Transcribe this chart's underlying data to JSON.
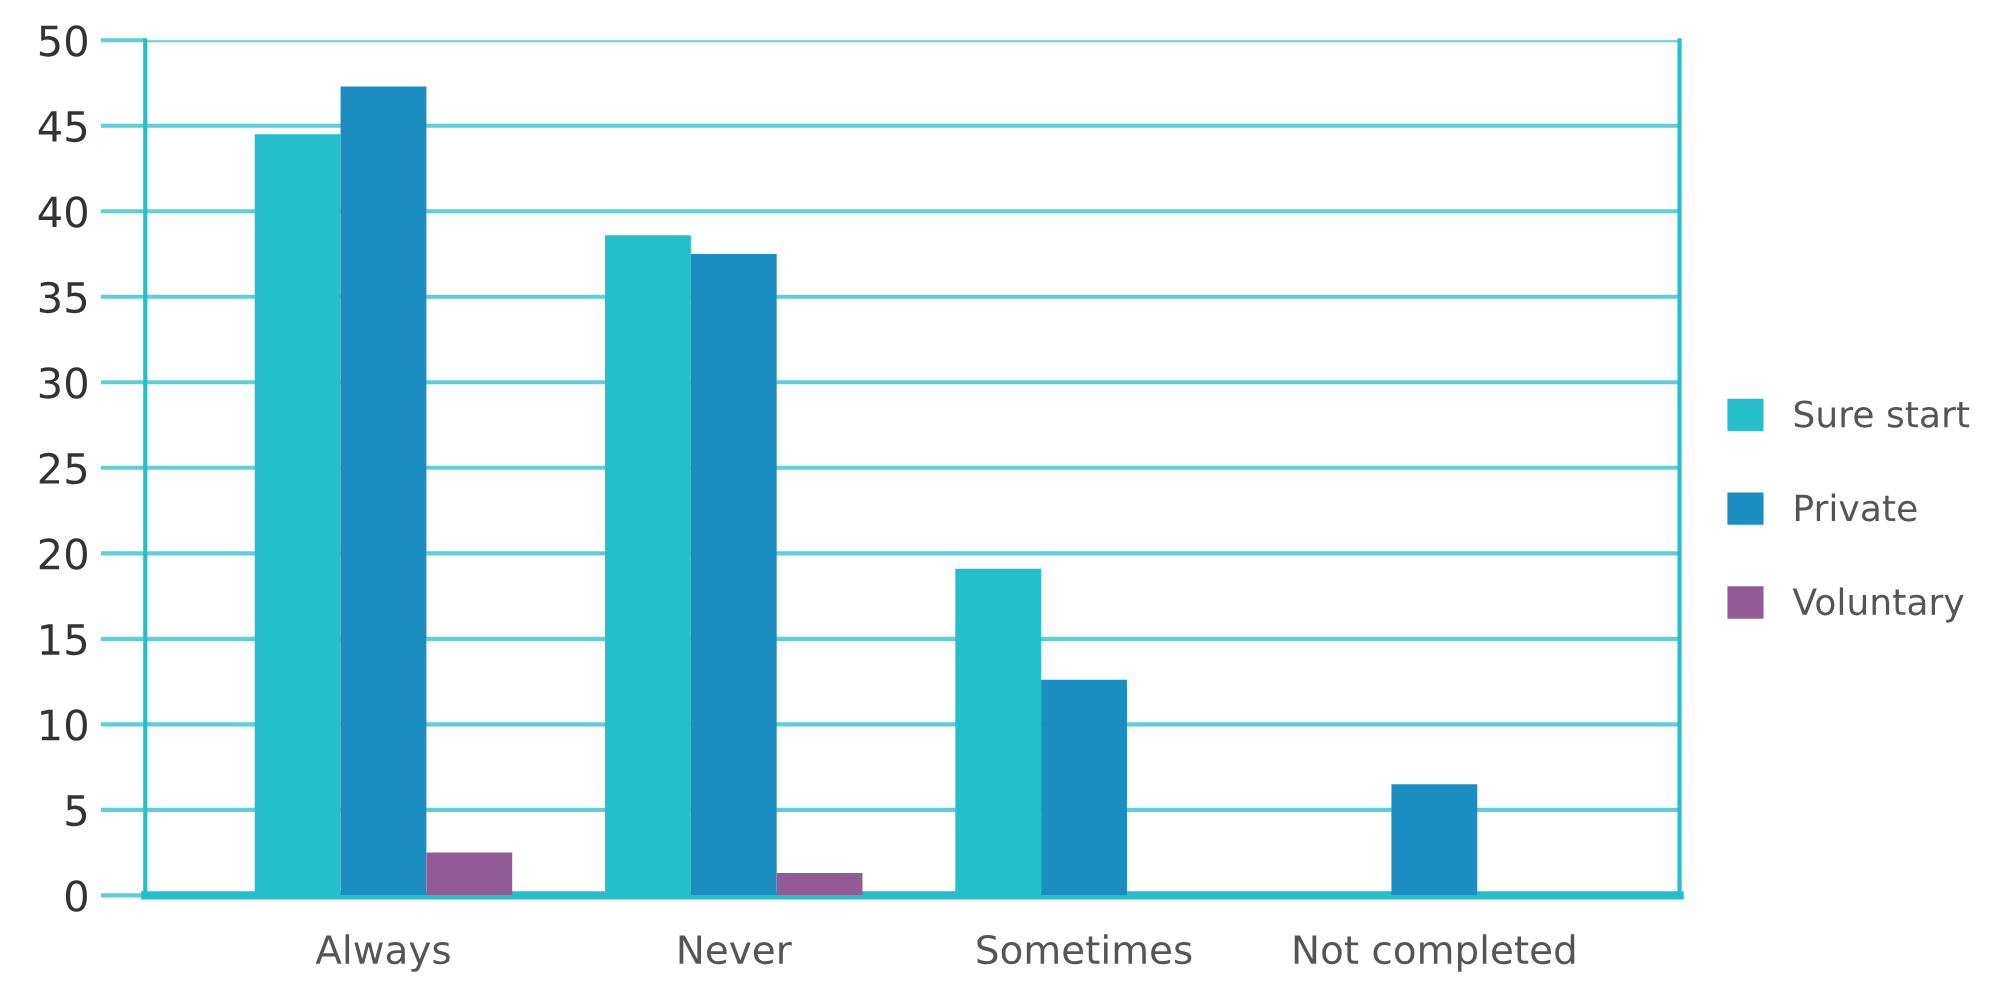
{
  "chart_data": {
    "type": "bar",
    "categories": [
      "Always",
      "Never",
      "Sometimes",
      "Not completed"
    ],
    "series": [
      {
        "name": "Sure start",
        "color": "#24bfca",
        "values": [
          44.5,
          38.6,
          19.1,
          0
        ]
      },
      {
        "name": "Private",
        "color": "#1b8dc0",
        "values": [
          47.3,
          37.5,
          12.6,
          6.5
        ]
      },
      {
        "name": "Voluntary",
        "color": "#925b95",
        "values": [
          2.5,
          1.3,
          0,
          0
        ]
      }
    ],
    "ylim": [
      0,
      50
    ],
    "yticks": [
      0,
      5,
      10,
      15,
      20,
      25,
      30,
      35,
      40,
      45,
      50
    ],
    "grid": "y",
    "legend": "right"
  }
}
